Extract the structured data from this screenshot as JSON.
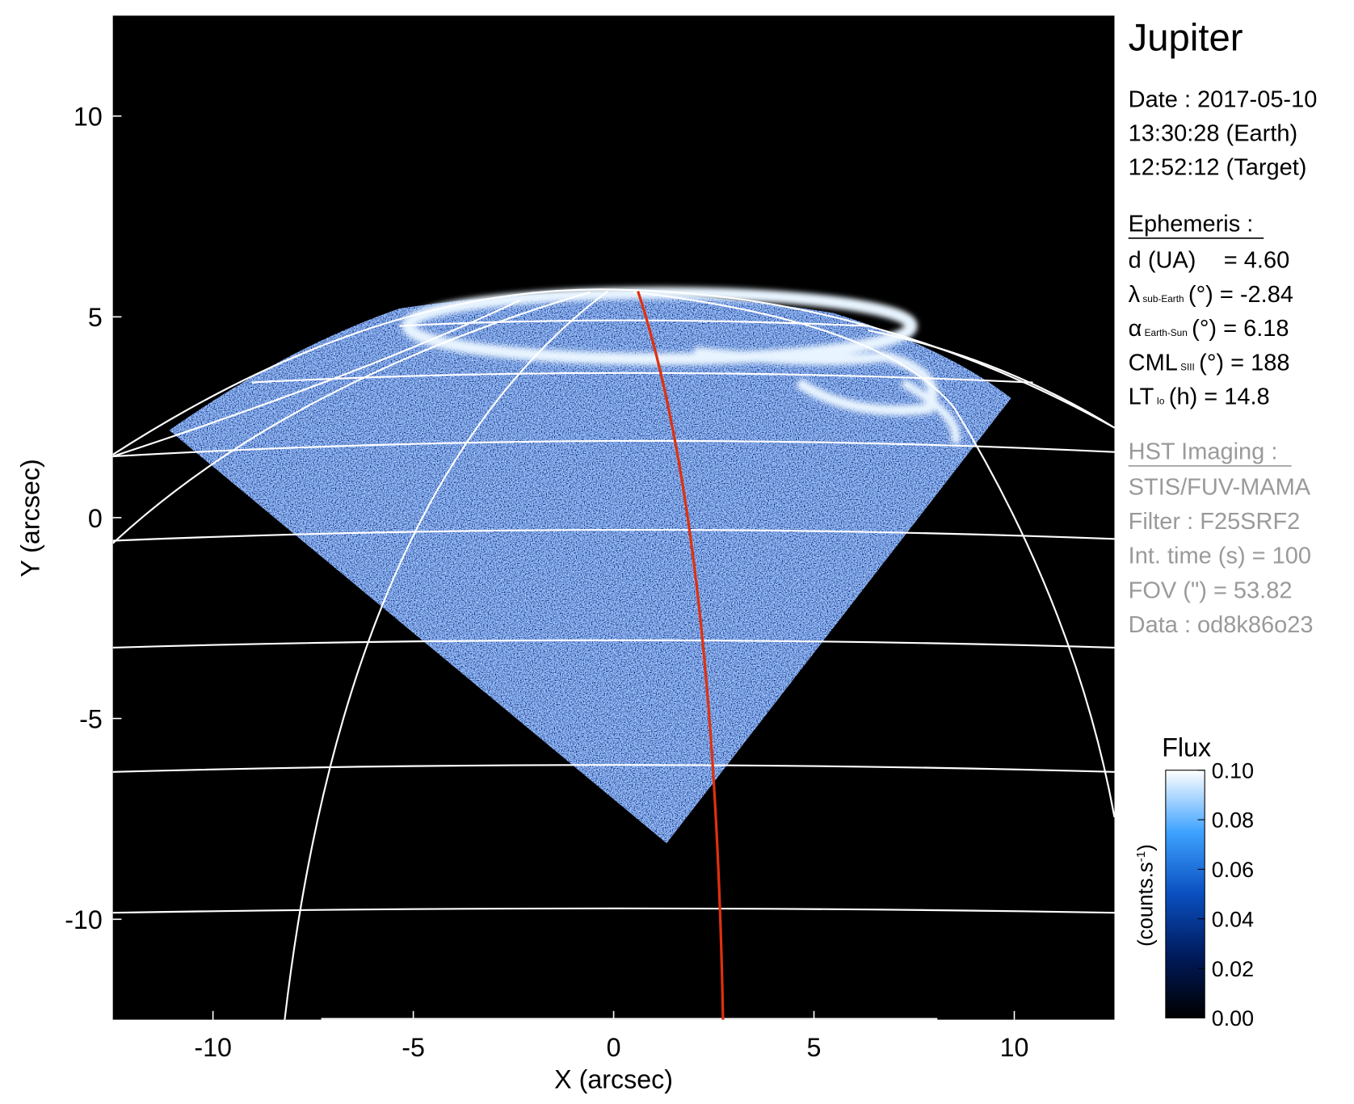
{
  "chart_data": {
    "type": "image",
    "xlabel": "X (arcsec)",
    "ylabel": "Y (arcsec)",
    "xlim": [
      -12.5,
      12.5
    ],
    "ylim": [
      -12.5,
      12.5
    ],
    "xticks": [
      -10,
      -5,
      0,
      5,
      10
    ],
    "yticks": [
      -10,
      -5,
      0,
      5,
      10
    ],
    "colorbar": {
      "label": "Flux",
      "unit": "(counts.s",
      "unit_sup": "-1",
      "unit_end": ")",
      "ylim": [
        0,
        0.1
      ],
      "yticks": [
        {
          "value": 0,
          "label": "0.00"
        },
        {
          "value": 0.02,
          "label": "0.02"
        },
        {
          "value": 0.04,
          "label": "0.04"
        },
        {
          "value": 0.06,
          "label": "0.06"
        },
        {
          "value": 0.08,
          "label": "0.08"
        },
        {
          "value": 0.1,
          "label": "0.10"
        }
      ]
    },
    "panel": {
      "title": "Jupiter",
      "date": [
        "Date : 2017-05-10",
        "13:30:28 (Earth)",
        "12:52:12 (Target)"
      ],
      "ephemeris_title": "Ephemeris :",
      "ephemeris": [
        {
          "symbol": "d (UA)",
          "rest": "= 4.60"
        },
        {
          "symbol": "λ",
          "sub": "sub-Earth",
          "rest": "(°) = -2.84"
        },
        {
          "symbol": "α",
          "sub": "Earth-Sun",
          "rest": "(°) = 6.18"
        },
        {
          "symbol": "CML",
          "sub": "SIII",
          "rest": "(°) = 188"
        },
        {
          "symbol": "LT",
          "sub": "Io",
          "rest": "(h) = 14.8"
        }
      ],
      "imaging_title": "HST Imaging :",
      "imaging": [
        "STIS/FUV-MAMA",
        "Filter : F25SRF2",
        "Int. time (s) = 100",
        "FOV (\") = 53.82",
        "Data : od8k86o23"
      ]
    }
  }
}
